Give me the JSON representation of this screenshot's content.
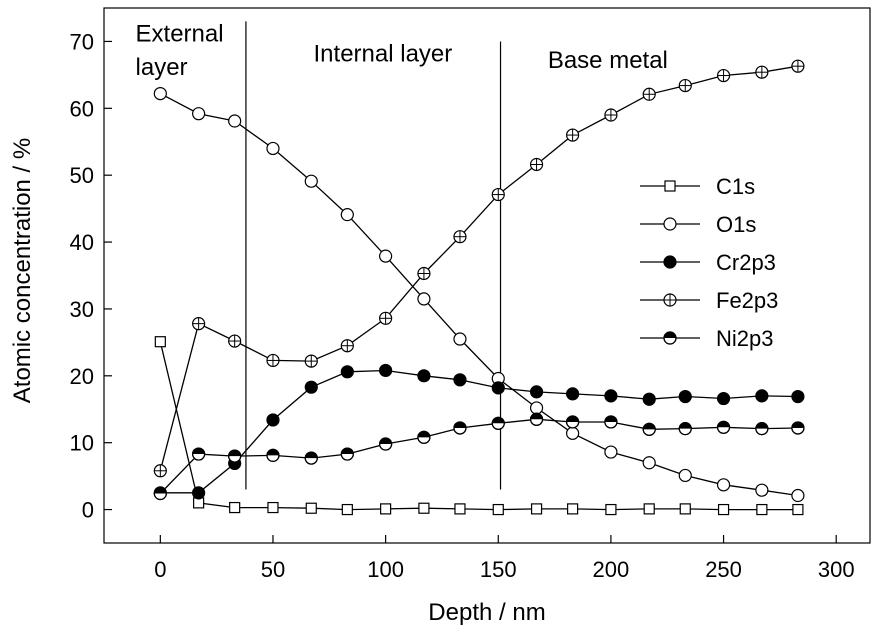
{
  "chart_data": {
    "type": "line",
    "xlabel": "Depth / nm",
    "ylabel": "Atomic concentration / %",
    "xlim": [
      -25,
      315
    ],
    "ylim": [
      -5,
      75
    ],
    "xticks": [
      0,
      50,
      100,
      150,
      200,
      250,
      300
    ],
    "yticks": [
      0,
      10,
      20,
      30,
      40,
      50,
      60,
      70
    ],
    "grid": false,
    "legend_position": "right",
    "annotations": [
      {
        "text": "External",
        "x": -11,
        "y": 70
      },
      {
        "text": "layer",
        "x": -11,
        "y": 65
      },
      {
        "text": "Internal layer",
        "x": 68,
        "y": 67
      },
      {
        "text": "Base metal",
        "x": 172,
        "y": 66
      }
    ],
    "vlines": [
      {
        "x": 38,
        "y": [
          3,
          73
        ]
      },
      {
        "x": 151,
        "y": [
          3,
          70
        ]
      }
    ],
    "series": [
      {
        "name": "C1s",
        "marker": "open-square",
        "x": [
          0,
          17,
          33,
          50,
          67,
          83,
          100,
          117,
          133,
          150,
          167,
          183,
          200,
          217,
          233,
          250,
          267,
          283
        ],
        "values": [
          25.1,
          1.0,
          0.3,
          0.3,
          0.2,
          0.0,
          0.1,
          0.2,
          0.1,
          0.0,
          0.1,
          0.1,
          0.0,
          0.1,
          0.1,
          0.0,
          0.0,
          0.0
        ]
      },
      {
        "name": "O1s",
        "marker": "open-circle",
        "x": [
          0,
          17,
          33,
          50,
          67,
          83,
          100,
          117,
          133,
          150,
          167,
          183,
          200,
          217,
          233,
          250,
          267,
          283
        ],
        "values": [
          62.2,
          59.2,
          58.1,
          54.0,
          49.1,
          44.1,
          37.9,
          31.5,
          25.5,
          19.6,
          15.2,
          11.4,
          8.6,
          7.0,
          5.1,
          3.7,
          2.9,
          2.1
        ]
      },
      {
        "name": "Cr2p3",
        "marker": "filled-circle",
        "x": [
          0,
          17,
          33,
          50,
          67,
          83,
          100,
          117,
          133,
          150,
          167,
          183,
          200,
          217,
          233,
          250,
          267,
          283
        ],
        "values": [
          2.5,
          2.5,
          6.9,
          13.4,
          18.3,
          20.6,
          20.8,
          20.0,
          19.4,
          18.2,
          17.6,
          17.3,
          17.0,
          16.5,
          16.9,
          16.6,
          17.0,
          16.9
        ]
      },
      {
        "name": "Fe2p3",
        "marker": "crossed-circle",
        "x": [
          0,
          17,
          33,
          50,
          67,
          83,
          100,
          117,
          133,
          150,
          167,
          183,
          200,
          217,
          233,
          250,
          267,
          283
        ],
        "values": [
          5.8,
          27.8,
          25.2,
          22.3,
          22.2,
          24.5,
          28.6,
          35.3,
          40.8,
          47.1,
          51.6,
          56.0,
          59.0,
          62.1,
          63.4,
          64.9,
          65.4,
          66.3
        ]
      },
      {
        "name": "Ni2p3",
        "marker": "half-filled-circle",
        "x": [
          0,
          17,
          33,
          50,
          67,
          83,
          100,
          117,
          133,
          150,
          167,
          183,
          200,
          217,
          233,
          250,
          267,
          283
        ],
        "values": [
          2.4,
          8.3,
          8.0,
          8.1,
          7.7,
          8.3,
          9.8,
          10.8,
          12.2,
          12.9,
          13.5,
          13.1,
          13.1,
          12.0,
          12.1,
          12.3,
          12.1,
          12.2
        ]
      }
    ]
  }
}
